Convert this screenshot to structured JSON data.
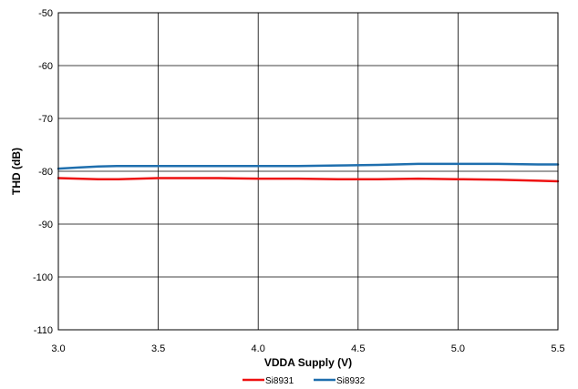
{
  "chart_data": {
    "type": "line",
    "title": "",
    "xlabel": "VDDA Supply (V)",
    "ylabel": "THD (dB)",
    "xlim": [
      3.0,
      5.5
    ],
    "ylim": [
      -110,
      -50
    ],
    "xticks": [
      3.0,
      3.5,
      4.0,
      4.5,
      5.0,
      5.5
    ],
    "xtick_labels": [
      "3.0",
      "3.5",
      "4.0",
      "4.5",
      "5.0",
      "5.5"
    ],
    "yticks": [
      -110,
      -100,
      -90,
      -80,
      -70,
      -60,
      -50
    ],
    "ytick_labels": [
      "-110",
      "-100",
      "-90",
      "-80",
      "-70",
      "-60",
      "-50"
    ],
    "grid": true,
    "legend_position": "bottom-center",
    "series": [
      {
        "name": "Si8931",
        "color": "#ee1111",
        "x": [
          3.0,
          3.1,
          3.2,
          3.3,
          3.4,
          3.5,
          3.6,
          3.8,
          4.0,
          4.2,
          4.4,
          4.6,
          4.8,
          5.0,
          5.2,
          5.4,
          5.5
        ],
        "y": [
          -81.3,
          -81.4,
          -81.5,
          -81.5,
          -81.4,
          -81.3,
          -81.3,
          -81.3,
          -81.4,
          -81.4,
          -81.5,
          -81.5,
          -81.4,
          -81.5,
          -81.6,
          -81.8,
          -81.9
        ]
      },
      {
        "name": "Si8932",
        "color": "#1f6fae",
        "x": [
          3.0,
          3.1,
          3.2,
          3.3,
          3.4,
          3.5,
          3.7,
          4.0,
          4.2,
          4.4,
          4.6,
          4.8,
          5.0,
          5.2,
          5.4,
          5.5
        ],
        "y": [
          -79.5,
          -79.3,
          -79.1,
          -79.0,
          -79.0,
          -79.0,
          -79.0,
          -79.0,
          -79.0,
          -78.9,
          -78.8,
          -78.6,
          -78.6,
          -78.6,
          -78.7,
          -78.7
        ]
      }
    ]
  }
}
